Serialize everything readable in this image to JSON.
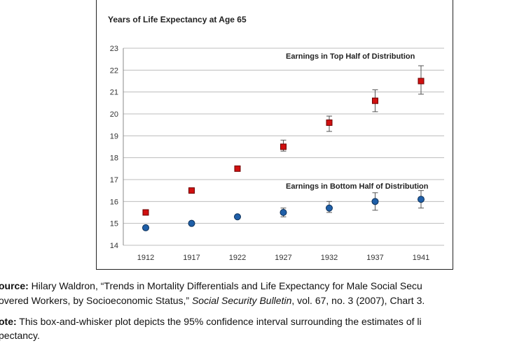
{
  "chart_data": {
    "type": "scatter",
    "title": "Years of Life Expectancy at Age 65",
    "categories": [
      "1912",
      "1917",
      "1922",
      "1927",
      "1932",
      "1937",
      "1941"
    ],
    "ylim": [
      14,
      23
    ],
    "yticks": [
      "14",
      "15",
      "16",
      "17",
      "18",
      "19",
      "20",
      "21",
      "22",
      "23"
    ],
    "grid": true,
    "series": [
      {
        "name": "Earnings in Top Half of Distribution",
        "marker": "square",
        "color": "#d01010",
        "values": [
          15.5,
          16.5,
          17.5,
          18.5,
          19.6,
          20.6,
          21.5
        ],
        "ci_low": [
          15.5,
          16.5,
          17.4,
          18.3,
          19.2,
          20.1,
          20.9
        ],
        "ci_high": [
          15.5,
          16.5,
          17.6,
          18.8,
          19.9,
          21.1,
          22.2
        ]
      },
      {
        "name": "Earnings in Bottom Half of Distribution",
        "marker": "circle",
        "color": "#1f5fa8",
        "values": [
          14.8,
          15.0,
          15.3,
          15.5,
          15.7,
          16.0,
          16.1
        ],
        "ci_low": [
          14.8,
          15.0,
          15.3,
          15.3,
          15.5,
          15.6,
          15.7
        ],
        "ci_high": [
          14.8,
          15.0,
          15.3,
          15.7,
          16.0,
          16.4,
          16.5
        ]
      }
    ]
  },
  "captions": {
    "source_label": "ource:",
    "source_text_1": " Hilary Waldron, “Trends in Mortality Differentials and Life Expectancy for Male Social Secu",
    "source_text_2a": "overed Workers, by Socioeconomic Status,” ",
    "source_journal": "Social Security Bulletin",
    "source_text_2b": ", vol. 67, no. 3 (2007), Chart 3.",
    "note_label": "ote:",
    "note_text_1": " This box-and-whisker plot depicts the 95% confidence interval surrounding the estimates of li",
    "note_text_2": "pectancy."
  }
}
